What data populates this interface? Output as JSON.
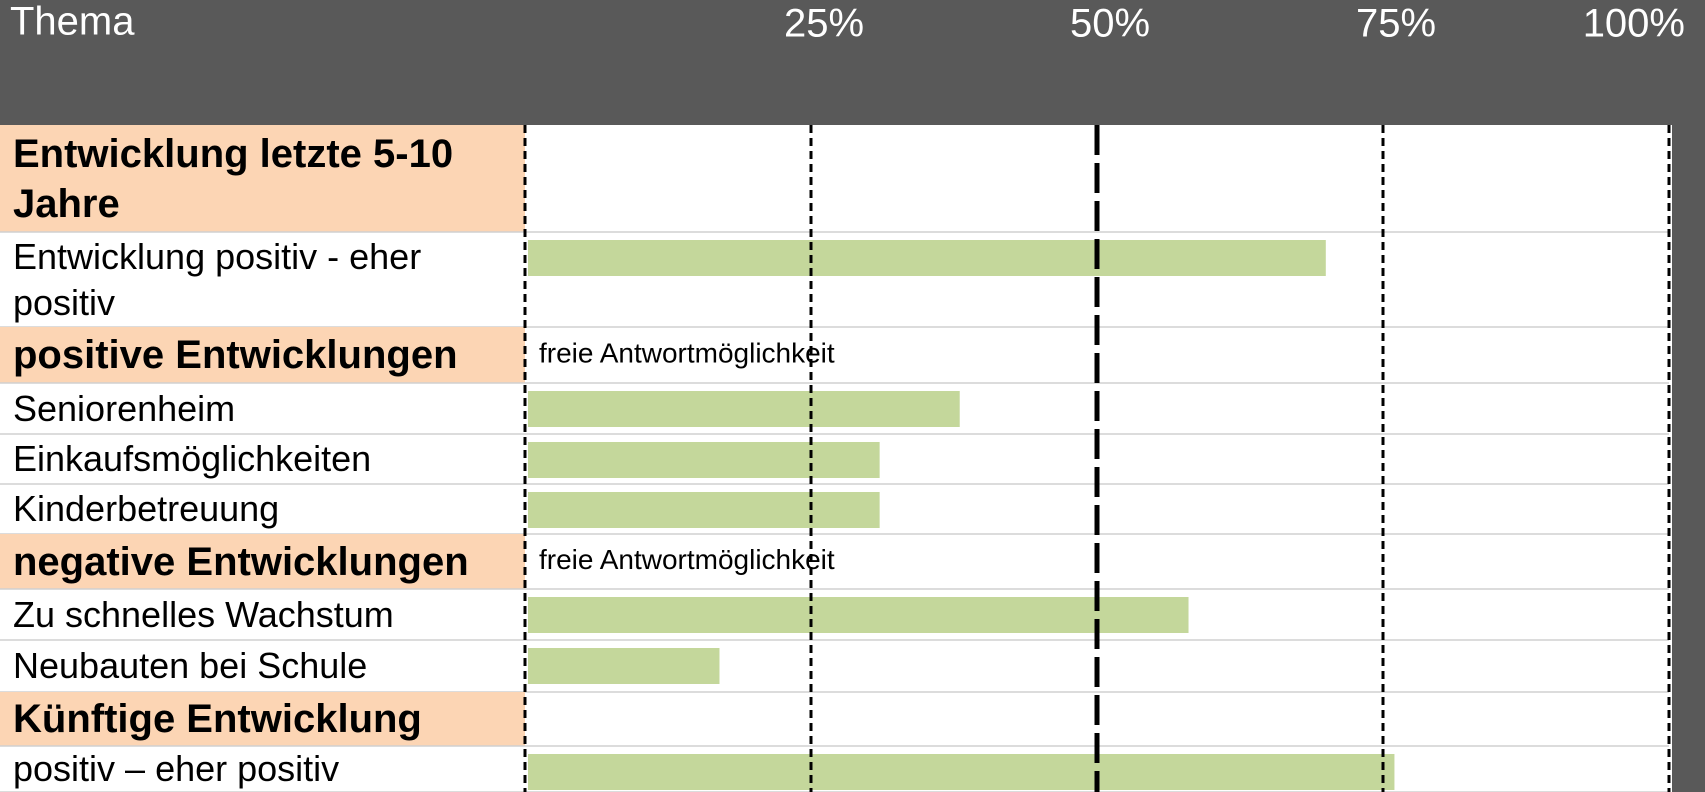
{
  "chart_data": {
    "type": "bar",
    "orientation": "horizontal",
    "column_header": "Thema",
    "categories": [
      "Entwicklung letzte 5-10 Jahre",
      "Entwicklung positiv - eher positiv",
      "positive Entwicklungen",
      "Seniorenheim",
      "Einkaufsmöglichkeiten",
      "Kinderbetreuung",
      "negative Entwicklungen",
      "Zu schnelles Wachstum",
      "Neubauten bei  Schule",
      "Künftige Entwicklung",
      "positiv – eher positiv"
    ],
    "values": [
      null,
      70,
      null,
      38,
      31,
      31,
      null,
      58,
      17,
      null,
      76
    ],
    "color": "#c4d79b",
    "xlim": [
      0,
      100
    ],
    "xticks": [
      {
        "value": 25,
        "label": "25%"
      },
      {
        "value": 50,
        "label": "50%"
      },
      {
        "value": 75,
        "label": "75%"
      },
      {
        "value": 100,
        "label": "100%"
      }
    ],
    "annotations": [
      {
        "text": "freie Antwortmöglichkeit",
        "category": 2
      },
      {
        "text": "freie Antwortmöglichkeit",
        "category": 6
      }
    ]
  }
}
